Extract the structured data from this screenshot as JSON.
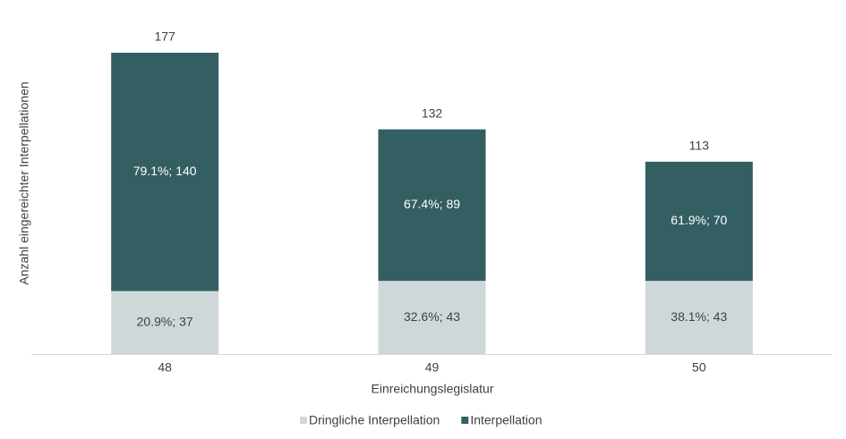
{
  "chart_data": {
    "type": "stacked-bar",
    "x_label": "Einreichungslegislatur",
    "y_label": "Anzahl eingereichter Interpellationen",
    "categories": [
      "48",
      "49",
      "50"
    ],
    "series": [
      {
        "name": "Dringliche Interpellation",
        "color": "#cfd8d9",
        "label_color": "#404040",
        "values": [
          37,
          43,
          43
        ],
        "value_labels": [
          "20.9%; 37",
          "32.6%; 43",
          "38.1%; 43"
        ]
      },
      {
        "name": "Interpellation",
        "color": "#335f63",
        "label_color": "#ffffff",
        "values": [
          140,
          89,
          70
        ],
        "value_labels": [
          "79.1%; 140",
          "67.4%; 89",
          "61.9%; 70"
        ]
      }
    ],
    "totals": [
      177,
      132,
      113
    ]
  }
}
